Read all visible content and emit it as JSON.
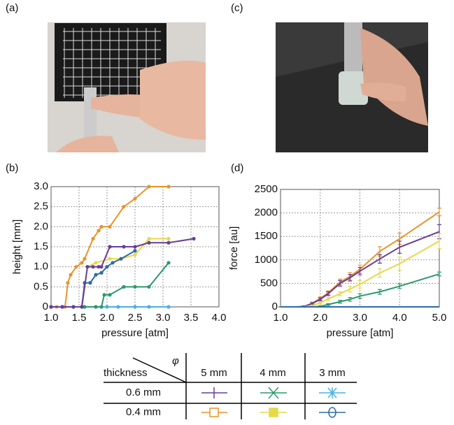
{
  "panel_labels": [
    "(a)",
    "(b)",
    "(c)",
    "(d)"
  ],
  "chart_data": [
    {
      "type": "line",
      "markers": true,
      "grid": true,
      "x_label": "pressure [atm]",
      "y_label": "height [mm]",
      "xlim": [
        1,
        4
      ],
      "ylim": [
        0,
        3
      ],
      "xticks": [
        {
          "value": 1,
          "label": "1.0"
        },
        1.5,
        {
          "value": 2,
          "label": "2.0"
        },
        2.5,
        {
          "value": 3,
          "label": "3.0"
        },
        3.5,
        {
          "value": 4,
          "label": "4.0"
        }
      ],
      "yticks": [
        0,
        0.5,
        {
          "value": 1,
          "label": "1.0"
        },
        1.5,
        {
          "value": 2,
          "label": "2.0"
        },
        2.5,
        {
          "value": 3,
          "label": "3.0"
        }
      ],
      "series": [
        {
          "color": "#4ab0e0",
          "x": [
            1.0,
            1.2,
            1.4,
            1.6,
            1.8,
            2.0,
            2.2,
            2.5,
            2.75,
            3.1
          ],
          "values": [
            0,
            0,
            0,
            0,
            0,
            0,
            0,
            0,
            0,
            0
          ]
        },
        {
          "color": "#e8942a",
          "x": [
            1.0,
            1.1,
            1.2,
            1.25,
            1.3,
            1.35,
            1.45,
            1.55,
            1.6,
            1.75,
            1.85,
            1.9,
            2.05,
            2.3,
            2.5,
            2.75,
            3.1
          ],
          "values": [
            0,
            0,
            0,
            0,
            0.6,
            0.8,
            1.0,
            1.1,
            1.2,
            1.7,
            1.9,
            2.0,
            2.0,
            2.5,
            2.7,
            3.0,
            3.0
          ]
        },
        {
          "color": "#e6d94a",
          "x": [
            1.0,
            1.2,
            1.4,
            1.55,
            1.65,
            1.8,
            2.05,
            2.25,
            2.5,
            2.75,
            3.1
          ],
          "values": [
            0,
            0,
            0,
            0,
            1.0,
            1.1,
            1.2,
            1.2,
            1.3,
            1.7,
            1.7
          ]
        },
        {
          "color": "#2a9a6a",
          "x": [
            1.0,
            1.2,
            1.4,
            1.6,
            1.8,
            1.9,
            1.95,
            2.05,
            2.3,
            2.5,
            2.75,
            3.1
          ],
          "values": [
            0,
            0,
            0,
            0,
            0,
            0,
            0.3,
            0.3,
            0.5,
            0.5,
            0.5,
            1.1
          ]
        },
        {
          "color": "#2d6ba8",
          "x": [
            1.0,
            1.2,
            1.4,
            1.55,
            1.6,
            1.7,
            1.8,
            1.9,
            2.0,
            2.1,
            2.25,
            2.5
          ],
          "values": [
            0,
            0,
            0,
            0,
            0.6,
            0.6,
            0.8,
            0.85,
            1.0,
            1.1,
            1.2,
            1.4
          ]
        },
        {
          "color": "#6a3d9a",
          "x": [
            1.0,
            1.2,
            1.4,
            1.55,
            1.65,
            1.75,
            1.85,
            1.9,
            2.05,
            2.3,
            2.5,
            2.75,
            3.1,
            3.55
          ],
          "values": [
            0,
            0,
            0,
            0,
            1.0,
            1.0,
            1.0,
            1.0,
            1.5,
            1.5,
            1.5,
            1.6,
            1.6,
            1.7
          ]
        }
      ]
    },
    {
      "type": "line",
      "markers": false,
      "grid": true,
      "x_label": "pressure [atm]",
      "y_label": "force [au]",
      "xlim": [
        1,
        5
      ],
      "ylim": [
        0,
        2500
      ],
      "xticks": [
        {
          "value": 1,
          "label": "1.0"
        },
        {
          "value": 2,
          "label": "2.0"
        },
        {
          "value": 3,
          "label": "3.0"
        },
        {
          "value": 4,
          "label": "4.0"
        },
        {
          "value": 5,
          "label": "5.0"
        }
      ],
      "yticks": [
        0,
        500,
        1000,
        1500,
        2000,
        2500
      ],
      "series": [
        {
          "color": "#e8942a",
          "x": [
            1.0,
            1.2,
            1.4,
            1.6,
            1.8,
            2.0,
            2.2,
            2.5,
            2.75,
            3.0,
            3.5,
            4.0,
            5.0
          ],
          "values": [
            0,
            0,
            0,
            10,
            80,
            180,
            300,
            530,
            650,
            800,
            1180,
            1450,
            2020
          ],
          "errors": [
            0,
            0,
            0,
            10,
            20,
            30,
            40,
            60,
            80,
            90,
            100,
            120,
            80
          ]
        },
        {
          "color": "#6a3d9a",
          "x": [
            1.0,
            1.2,
            1.4,
            1.6,
            1.8,
            2.0,
            2.2,
            2.5,
            2.75,
            3.0,
            3.5,
            4.0,
            5.0
          ],
          "values": [
            0,
            0,
            0,
            10,
            70,
            160,
            280,
            500,
            620,
            760,
            1020,
            1270,
            1600
          ],
          "errors": [
            0,
            0,
            0,
            10,
            20,
            30,
            40,
            60,
            70,
            80,
            90,
            130,
            150
          ]
        },
        {
          "color": "#e6d94a",
          "x": [
            1.0,
            1.2,
            1.4,
            1.6,
            1.8,
            2.0,
            2.2,
            2.5,
            2.75,
            3.0,
            3.5,
            4.0,
            5.0
          ],
          "values": [
            0,
            0,
            0,
            0,
            30,
            80,
            170,
            280,
            380,
            480,
            720,
            920,
            1400
          ],
          "errors": [
            0,
            0,
            0,
            0,
            10,
            20,
            30,
            40,
            60,
            80,
            90,
            140,
            160
          ]
        },
        {
          "color": "#2a9a6a",
          "x": [
            1.0,
            1.2,
            1.4,
            1.6,
            1.8,
            2.0,
            2.2,
            2.5,
            2.75,
            3.0,
            3.5,
            4.0,
            5.0
          ],
          "values": [
            0,
            0,
            0,
            0,
            0,
            10,
            50,
            110,
            160,
            230,
            320,
            440,
            700
          ],
          "errors": [
            0,
            0,
            0,
            0,
            0,
            10,
            20,
            30,
            40,
            50,
            50,
            50,
            40
          ]
        },
        {
          "color": "#2d6ba8",
          "x": [
            1.0,
            1.2,
            1.4,
            1.6,
            1.8,
            2.0,
            2.2,
            2.5,
            2.75,
            3.0,
            3.5,
            4.0,
            5.0
          ],
          "values": [
            0,
            0,
            0,
            0,
            0,
            0,
            0,
            0,
            0,
            0,
            0,
            0,
            0
          ]
        }
      ]
    }
  ],
  "legend_table": {
    "phi": "φ",
    "row_header": "thickness",
    "columns": [
      "5 mm",
      "4 mm",
      "3 mm"
    ],
    "rows": [
      "0.6 mm",
      "0.4 mm"
    ]
  }
}
